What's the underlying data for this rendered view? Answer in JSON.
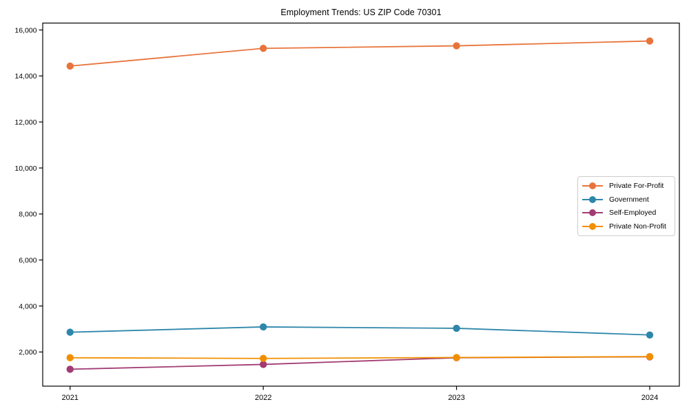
{
  "chart_data": {
    "type": "line",
    "title": "Employment Trends: US ZIP Code 70301",
    "xlabel": "",
    "ylabel": "",
    "x": [
      2021,
      2022,
      2023,
      2024
    ],
    "x_tick_labels": [
      "2021",
      "2022",
      "2023",
      "2024"
    ],
    "y_ticks": [
      {
        "value": 2000,
        "label": "2,000"
      },
      {
        "value": 4000,
        "label": "4,000"
      },
      {
        "value": 6000,
        "label": "6,000"
      },
      {
        "value": 8000,
        "label": "8,000"
      },
      {
        "value": 10000,
        "label": "10,000"
      },
      {
        "value": 12000,
        "label": "12,000"
      },
      {
        "value": 14000,
        "label": "14,000"
      },
      {
        "value": 16000,
        "label": "16,000"
      }
    ],
    "ylim": [
      515,
      16300
    ],
    "grid": false,
    "legend_position": "middle-right",
    "marker": "circle",
    "axis_color": "#000000",
    "series": [
      {
        "name": "Private For-Profit",
        "color": "#E8743B",
        "values": [
          14430,
          15200,
          15310,
          15520
        ]
      },
      {
        "name": "Government",
        "color": "#2E86AB",
        "values": [
          2860,
          3090,
          3030,
          2740
        ]
      },
      {
        "name": "Self-Employed",
        "color": "#A23B72",
        "values": [
          1250,
          1460,
          1750,
          1790
        ]
      },
      {
        "name": "Private Non-Profit",
        "color": "#F18F01",
        "values": [
          1750,
          1720,
          1760,
          1800
        ]
      }
    ]
  }
}
